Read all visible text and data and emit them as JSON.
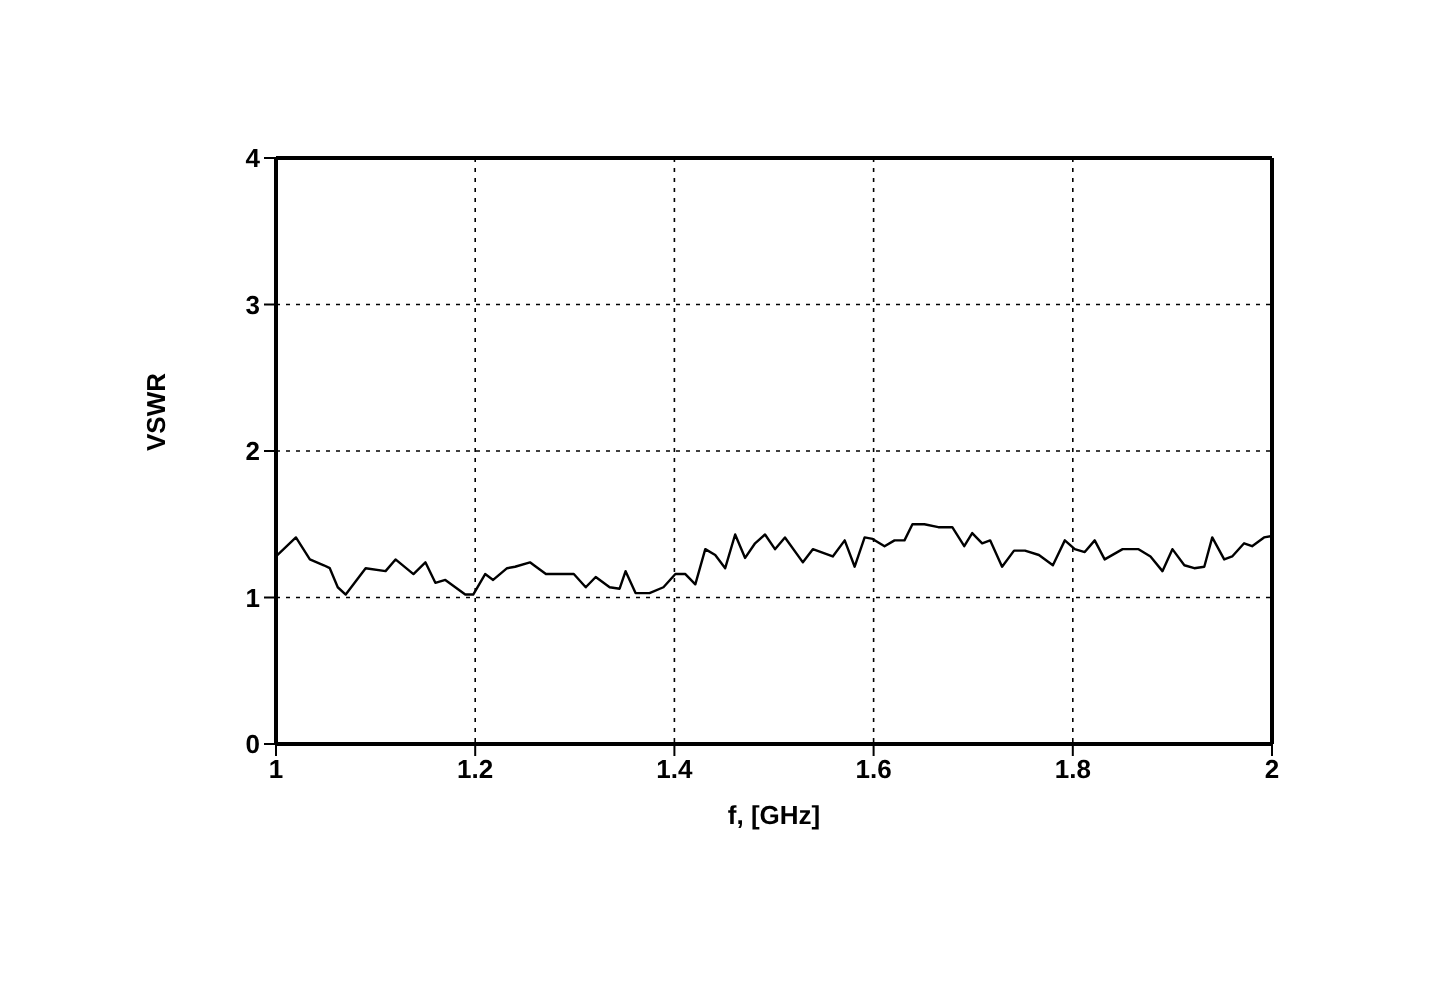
{
  "chart_data": {
    "type": "line",
    "xlabel": "f, [GHz]",
    "ylabel": "VSWR",
    "x": [
      1.0,
      1.02,
      1.034,
      1.048,
      1.054,
      1.062,
      1.07,
      1.09,
      1.11,
      1.12,
      1.138,
      1.15,
      1.16,
      1.17,
      1.19,
      1.198,
      1.21,
      1.218,
      1.232,
      1.24,
      1.255,
      1.259,
      1.271,
      1.299,
      1.311,
      1.321,
      1.335,
      1.345,
      1.351,
      1.361,
      1.375,
      1.389,
      1.401,
      1.411,
      1.421,
      1.431,
      1.441,
      1.451,
      1.461,
      1.471,
      1.481,
      1.491,
      1.501,
      1.511,
      1.529,
      1.539,
      1.559,
      1.571,
      1.581,
      1.591,
      1.599,
      1.611,
      1.621,
      1.631,
      1.639,
      1.651,
      1.665,
      1.679,
      1.691,
      1.699,
      1.709,
      1.717,
      1.729,
      1.741,
      1.752,
      1.766,
      1.78,
      1.792,
      1.802,
      1.812,
      1.822,
      1.832,
      1.85,
      1.866,
      1.878,
      1.89,
      1.9,
      1.912,
      1.922,
      1.932,
      1.94,
      1.952,
      1.96,
      1.972,
      1.98,
      1.992,
      2.0
    ],
    "series": [
      {
        "color": "#000000",
        "values": [
          1.28,
          1.41,
          1.26,
          1.22,
          1.2,
          1.07,
          1.02,
          1.2,
          1.18,
          1.26,
          1.16,
          1.24,
          1.1,
          1.12,
          1.02,
          1.02,
          1.16,
          1.12,
          1.2,
          1.21,
          1.24,
          1.22,
          1.16,
          1.16,
          1.07,
          1.14,
          1.07,
          1.06,
          1.18,
          1.03,
          1.03,
          1.07,
          1.16,
          1.16,
          1.09,
          1.33,
          1.29,
          1.2,
          1.43,
          1.27,
          1.37,
          1.43,
          1.33,
          1.41,
          1.24,
          1.33,
          1.28,
          1.39,
          1.21,
          1.41,
          1.4,
          1.35,
          1.39,
          1.39,
          1.5,
          1.5,
          1.48,
          1.48,
          1.35,
          1.44,
          1.37,
          1.39,
          1.21,
          1.32,
          1.32,
          1.29,
          1.22,
          1.39,
          1.33,
          1.31,
          1.39,
          1.26,
          1.33,
          1.33,
          1.28,
          1.18,
          1.33,
          1.22,
          1.2,
          1.21,
          1.41,
          1.26,
          1.28,
          1.37,
          1.35,
          1.41,
          1.42
        ]
      }
    ],
    "xlim": [
      1,
      2
    ],
    "xticks": [
      1,
      1.2,
      1.4,
      1.6,
      1.8,
      2
    ],
    "ylim": [
      0,
      4
    ],
    "yticks": [
      0,
      1,
      2,
      3,
      4
    ],
    "grid": true,
    "marker": "none",
    "line_style": "solid"
  }
}
